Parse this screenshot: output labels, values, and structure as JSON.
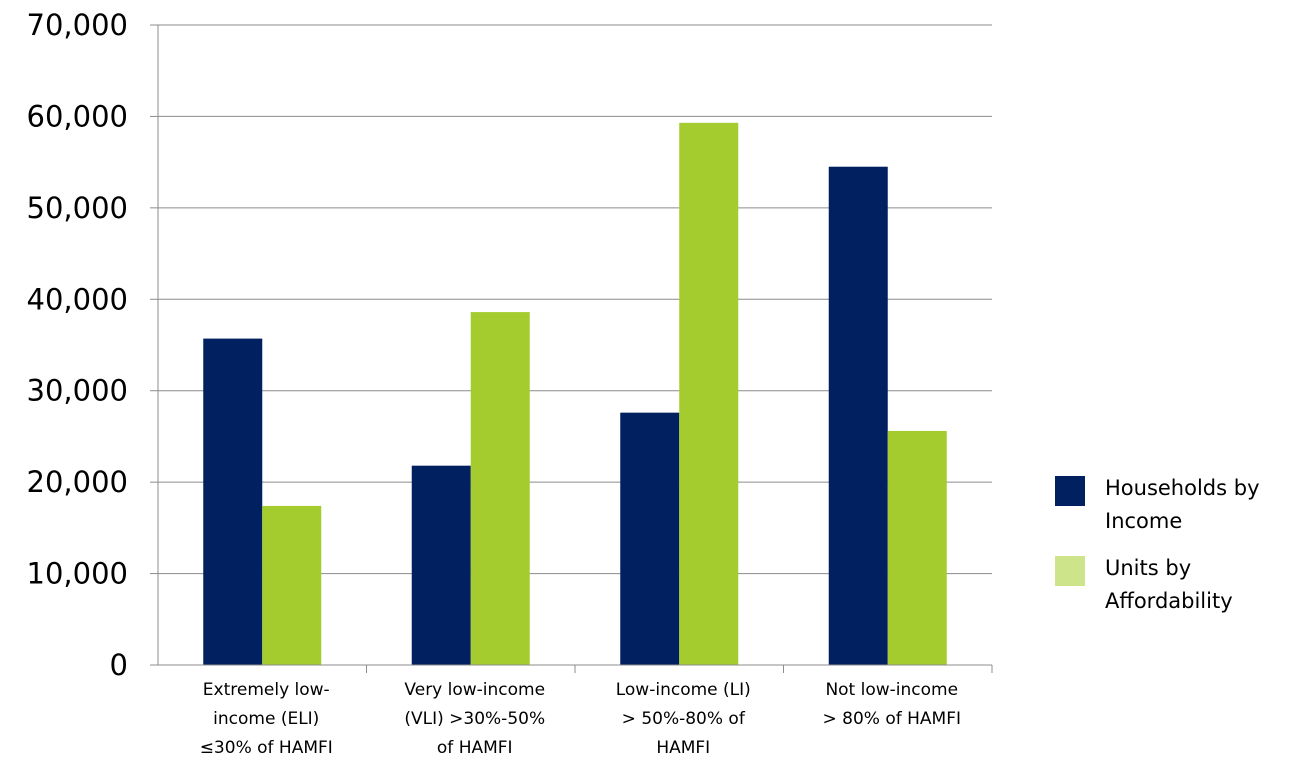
{
  "chart_data": {
    "type": "bar",
    "categories": [
      "Extremely low-\nincome (ELI)\n≤30% of HAMFI",
      "Very low-income\n(VLI) >30%-50%\nof HAMFI",
      "Low-income (LI)\n> 50%-80% of\nHAMFI",
      "Not low-income\n> 80% of HAMFI"
    ],
    "series": [
      {
        "name": "Households by Income",
        "values": [
          35700,
          21800,
          27600,
          54500
        ],
        "color": "#012060"
      },
      {
        "name": "Units by Affordability",
        "values": [
          17400,
          38600,
          59300,
          25600
        ],
        "color": "#a5cc2e"
      }
    ],
    "legend_swatch_colors": [
      "#012060",
      "#cde48a"
    ],
    "y_ticks": [
      "0",
      "10,000",
      "20,000",
      "30,000",
      "40,000",
      "50,000",
      "60,000",
      "70,000"
    ],
    "ylim": [
      0,
      70000
    ],
    "grid": true,
    "legend_position": "right",
    "title": "",
    "xlabel": "",
    "ylabel": ""
  }
}
